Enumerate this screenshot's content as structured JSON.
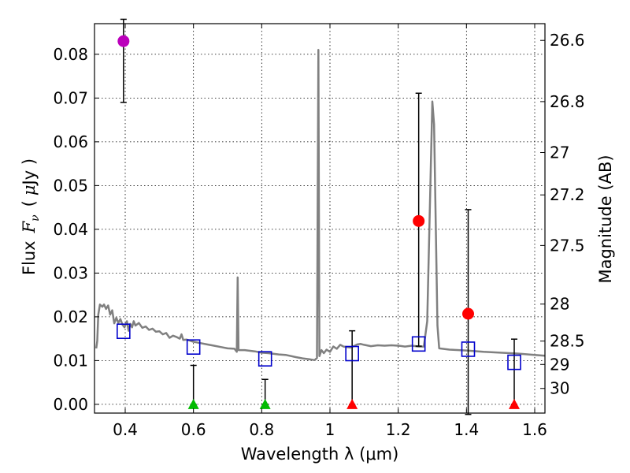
{
  "chart_data": {
    "type": "scatter",
    "xlabel": "Wavelength  λ (μm)",
    "ylabel_text": "Flux",
    "ylabel_symbol": "F",
    "ylabel_subscript": "ν",
    "ylabel_unit_prefix": "(",
    "ylabel_unit_mu": "μ",
    "ylabel_unit": "Jy )",
    "y2label": "Magnitude (AB)",
    "xlim": [
      0.31,
      1.63
    ],
    "ylim": [
      -0.002,
      0.087
    ],
    "grid": true,
    "x_ticks": [
      0.4,
      0.6,
      0.8,
      1.0,
      1.2,
      1.4,
      1.6
    ],
    "x_tick_labels": [
      "0.4",
      "0.6",
      "0.8",
      "1",
      "1.2",
      "1.4",
      "1.6"
    ],
    "y_ticks": [
      0.0,
      0.01,
      0.02,
      0.03,
      0.04,
      0.05,
      0.06,
      0.07,
      0.08
    ],
    "y_tick_labels": [
      "0.00",
      "0.01",
      "0.02",
      "0.03",
      "0.04",
      "0.05",
      "0.06",
      "0.07",
      "0.08"
    ],
    "magnitude_ticks": [
      {
        "label": "26.6",
        "mag": 26.6
      },
      {
        "label": "26.8",
        "mag": 26.8
      },
      {
        "label": "27",
        "mag": 27.0
      },
      {
        "label": "27.2",
        "mag": 27.2
      },
      {
        "label": "27.5",
        "mag": 27.5
      },
      {
        "label": "28",
        "mag": 28.0
      },
      {
        "label": "28.5",
        "mag": 28.5
      },
      {
        "label": "29",
        "mag": 29.0
      },
      {
        "label": "30",
        "mag": 30.0
      }
    ],
    "colors": {
      "sed": "#808080",
      "model": "#0000cc",
      "detection_red": "#ff0000",
      "detection_purple": "#bb00bb",
      "upper_green": "#00bb00",
      "upper_red": "#ff0000",
      "errorbar": "#000000"
    },
    "sed_spectrum": [
      [
        0.315,
        0.0128
      ],
      [
        0.318,
        0.0145
      ],
      [
        0.321,
        0.0205
      ],
      [
        0.326,
        0.0228
      ],
      [
        0.333,
        0.0223
      ],
      [
        0.338,
        0.0228
      ],
      [
        0.344,
        0.0218
      ],
      [
        0.35,
        0.0226
      ],
      [
        0.356,
        0.0205
      ],
      [
        0.362,
        0.0215
      ],
      [
        0.368,
        0.0185
      ],
      [
        0.374,
        0.0198
      ],
      [
        0.38,
        0.0186
      ],
      [
        0.386,
        0.0195
      ],
      [
        0.392,
        0.0182
      ],
      [
        0.398,
        0.0176
      ],
      [
        0.405,
        0.019
      ],
      [
        0.41,
        0.0168
      ],
      [
        0.415,
        0.0184
      ],
      [
        0.42,
        0.0176
      ],
      [
        0.425,
        0.019
      ],
      [
        0.43,
        0.018
      ],
      [
        0.44,
        0.0186
      ],
      [
        0.45,
        0.0175
      ],
      [
        0.46,
        0.0178
      ],
      [
        0.47,
        0.017
      ],
      [
        0.48,
        0.0173
      ],
      [
        0.49,
        0.0166
      ],
      [
        0.5,
        0.0167
      ],
      [
        0.51,
        0.016
      ],
      [
        0.52,
        0.0163
      ],
      [
        0.53,
        0.0152
      ],
      [
        0.54,
        0.0157
      ],
      [
        0.55,
        0.0154
      ],
      [
        0.56,
        0.015
      ],
      [
        0.565,
        0.016
      ],
      [
        0.57,
        0.0147
      ],
      [
        0.58,
        0.0148
      ],
      [
        0.6,
        0.0143
      ],
      [
        0.62,
        0.014
      ],
      [
        0.64,
        0.0137
      ],
      [
        0.66,
        0.0134
      ],
      [
        0.68,
        0.0131
      ],
      [
        0.7,
        0.0128
      ],
      [
        0.72,
        0.0127
      ],
      [
        0.727,
        0.012
      ],
      [
        0.7295,
        0.029
      ],
      [
        0.732,
        0.0124
      ],
      [
        0.75,
        0.0124
      ],
      [
        0.78,
        0.0121
      ],
      [
        0.8,
        0.0118
      ],
      [
        0.82,
        0.0117
      ],
      [
        0.85,
        0.0114
      ],
      [
        0.87,
        0.0113
      ],
      [
        0.9,
        0.0108
      ],
      [
        0.92,
        0.0105
      ],
      [
        0.94,
        0.0103
      ],
      [
        0.955,
        0.0101
      ],
      [
        0.962,
        0.0106
      ],
      [
        0.966,
        0.081
      ],
      [
        0.969,
        0.011
      ],
      [
        0.975,
        0.0124
      ],
      [
        0.982,
        0.0117
      ],
      [
        0.99,
        0.0125
      ],
      [
        1.0,
        0.012
      ],
      [
        1.01,
        0.0132
      ],
      [
        1.02,
        0.0127
      ],
      [
        1.03,
        0.0136
      ],
      [
        1.04,
        0.0132
      ],
      [
        1.05,
        0.0131
      ],
      [
        1.06,
        0.013
      ],
      [
        1.07,
        0.0133
      ],
      [
        1.08,
        0.0137
      ],
      [
        1.09,
        0.0138
      ],
      [
        1.1,
        0.0136
      ],
      [
        1.12,
        0.0133
      ],
      [
        1.14,
        0.0135
      ],
      [
        1.16,
        0.0134
      ],
      [
        1.18,
        0.0135
      ],
      [
        1.2,
        0.0134
      ],
      [
        1.22,
        0.0132
      ],
      [
        1.24,
        0.0134
      ],
      [
        1.26,
        0.0132
      ],
      [
        1.275,
        0.0132
      ],
      [
        1.285,
        0.019
      ],
      [
        1.3,
        0.0692
      ],
      [
        1.305,
        0.064
      ],
      [
        1.315,
        0.018
      ],
      [
        1.32,
        0.0128
      ],
      [
        1.35,
        0.0125
      ],
      [
        1.4,
        0.0123
      ],
      [
        1.45,
        0.012
      ],
      [
        1.5,
        0.0118
      ],
      [
        1.55,
        0.0116
      ],
      [
        1.6,
        0.0113
      ],
      [
        1.63,
        0.0111
      ]
    ],
    "model_points": [
      {
        "x": 0.395,
        "y": 0.0167
      },
      {
        "x": 0.6,
        "y": 0.0131
      },
      {
        "x": 0.81,
        "y": 0.0104
      },
      {
        "x": 1.065,
        "y": 0.0116
      },
      {
        "x": 1.26,
        "y": 0.0138
      },
      {
        "x": 1.405,
        "y": 0.0126
      },
      {
        "x": 1.54,
        "y": 0.0096
      }
    ],
    "detections": [
      {
        "x": 0.395,
        "y": 0.083,
        "err_low": 0.014,
        "err_high": 0.005,
        "color": "#bb00bb"
      },
      {
        "x": 1.26,
        "y": 0.0419,
        "err_low": 0.0286,
        "err_high": 0.0292,
        "color": "#ff0000"
      },
      {
        "x": 1.405,
        "y": 0.0207,
        "err_low": 0.023,
        "err_high": 0.0238,
        "color": "#ff0000"
      }
    ],
    "upper_limits": [
      {
        "x": 0.6,
        "y": 0.0,
        "upper": 0.0089,
        "color": "#00bb00"
      },
      {
        "x": 0.81,
        "y": 0.0,
        "upper": 0.0057,
        "color": "#00bb00"
      },
      {
        "x": 1.065,
        "y": 0.0,
        "upper": 0.0168,
        "color": "#ff0000"
      },
      {
        "x": 1.54,
        "y": 0.0,
        "upper": 0.0149,
        "color": "#ff0000"
      }
    ]
  }
}
